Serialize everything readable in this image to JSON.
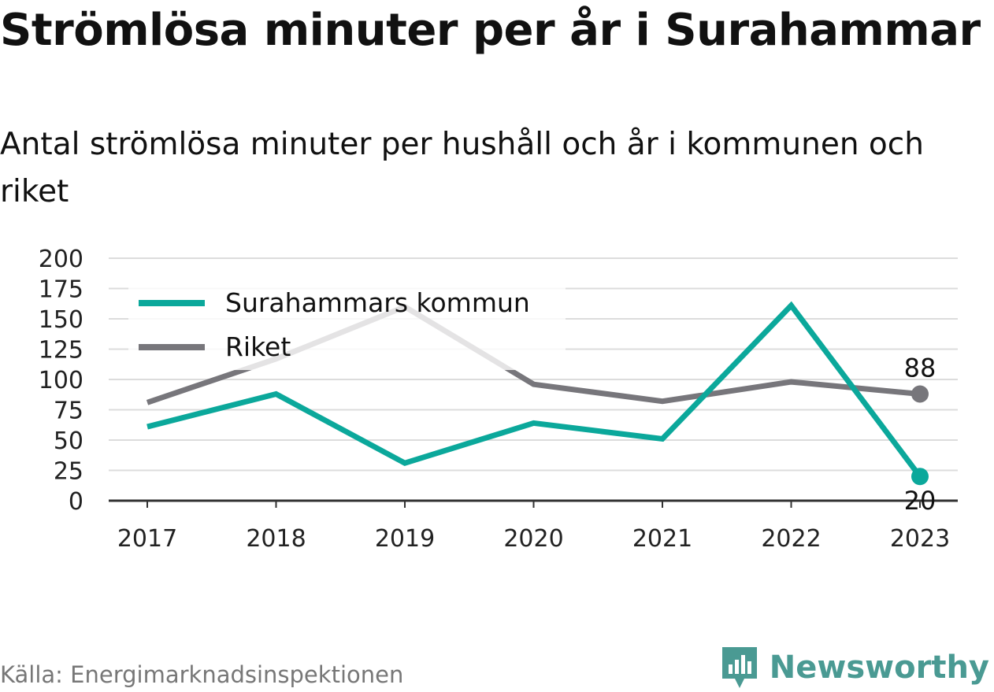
{
  "title": "Strömlösa minuter per år i Surahammar",
  "subtitle": "Antal strömlösa minuter per hushåll och år i kommunen och riket",
  "source": "Källa: Energimarknadsinspektionen",
  "brand": {
    "name": "Newsworthy",
    "icon": "newsworthy-logo-icon",
    "color": "#4a9a93"
  },
  "colors": {
    "kommun": "#0ba89b",
    "riket": "#77767b",
    "grid": "#dcdcdc",
    "axis": "#333333"
  },
  "chart_data": {
    "type": "line",
    "x": [
      "2017",
      "2018",
      "2019",
      "2020",
      "2021",
      "2022",
      "2023"
    ],
    "ylim": [
      0,
      200
    ],
    "yticks": [
      "0",
      "25",
      "50",
      "75",
      "100",
      "125",
      "150",
      "175",
      "200"
    ],
    "grid": true,
    "legend": "top-left",
    "series": [
      {
        "name": "Surahammars kommun",
        "values": [
          61,
          88,
          31,
          64,
          51,
          161,
          20
        ],
        "end_label": "20"
      },
      {
        "name": "Riket",
        "values": [
          81,
          117,
          160,
          96,
          82,
          98,
          88
        ],
        "end_label": "88"
      }
    ]
  }
}
